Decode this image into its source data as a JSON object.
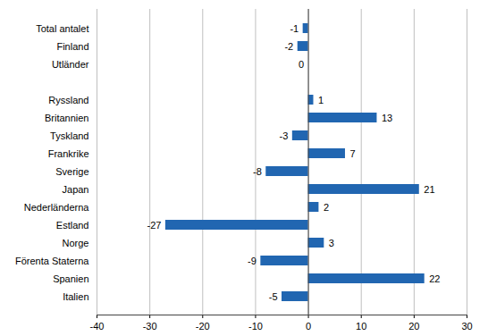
{
  "chart_data": {
    "type": "bar",
    "orientation": "horizontal",
    "categories": [
      "Total antalet",
      "Finland",
      "Utländer",
      null,
      "Ryssland",
      "Britannien",
      "Tyskland",
      "Frankrike",
      "Sverige",
      "Japan",
      "Nederländerna",
      "Estland",
      "Norge",
      "Förenta Staterna",
      "Spanien",
      "Italien"
    ],
    "values": [
      -1,
      -2,
      0,
      null,
      1,
      13,
      -3,
      7,
      -8,
      21,
      2,
      -27,
      3,
      -9,
      22,
      -5
    ],
    "color": "#2166b1",
    "xlim": [
      -40,
      30
    ],
    "xticks": [
      -40,
      -30,
      -20,
      -10,
      0,
      10,
      20,
      30
    ],
    "grid": true,
    "data_labels": true
  }
}
